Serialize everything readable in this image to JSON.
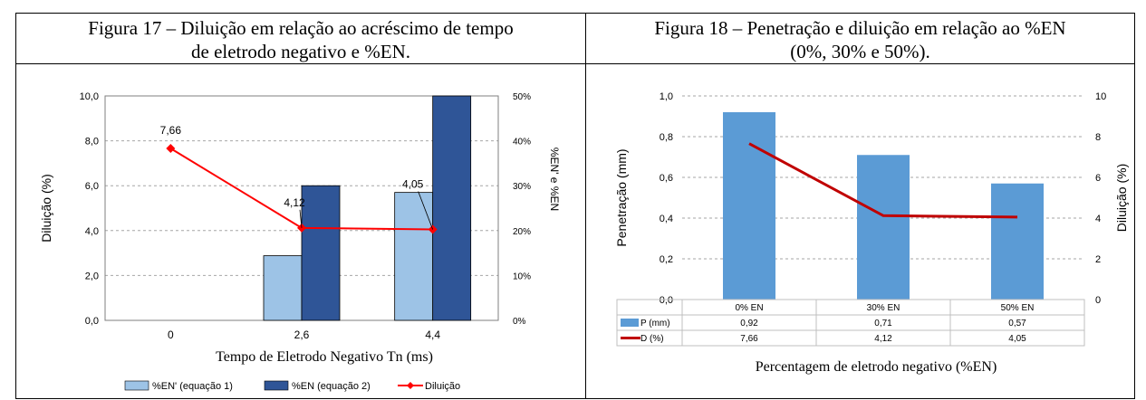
{
  "figure17": {
    "caption_line1": "Figura 17 – Diluição em relação ao acréscimo de tempo",
    "caption_line2": "de eletrodo negativo e %EN.",
    "colors": {
      "light_bar": "#9dc3e6",
      "dark_bar": "#2f5597",
      "line": "#ff0000",
      "grid": "#a6a6a6"
    }
  },
  "figure18": {
    "caption_line1": "Figura 18 – Penetração e diluição em relação ao %EN",
    "caption_line2": "(0%, 30% e 50%).",
    "colors": {
      "bar": "#5b9bd5",
      "line": "#c00000",
      "grid": "#a6a6a6"
    }
  },
  "chart_data": [
    {
      "type": "bar",
      "categories": [
        "0",
        "2,6",
        "4,4"
      ],
      "xlabel": "Tempo de Eletrodo Negativo Tn (ms)",
      "ylabel": "Diluição (%)",
      "ylabel_right": "%EN' e %EN",
      "ylim": [
        0,
        10
      ],
      "ylim_right": [
        0,
        50
      ],
      "yticks": [
        "0,0",
        "2,0",
        "4,0",
        "6,0",
        "8,0",
        "10,0"
      ],
      "yticks_right": [
        "0%",
        "10%",
        "20%",
        "30%",
        "40%",
        "50%"
      ],
      "grid": true,
      "legend_position": "bottom",
      "series": [
        {
          "name": "%EN' (equação 1)",
          "axis": "right",
          "kind": "bar",
          "values": [
            null,
            14.4,
            28.5
          ]
        },
        {
          "name": "%EN (equação 2)",
          "axis": "right",
          "kind": "bar",
          "values": [
            null,
            30,
            50
          ]
        },
        {
          "name": "Diluição",
          "axis": "left",
          "kind": "line",
          "values": [
            7.66,
            4.12,
            4.05
          ]
        }
      ],
      "data_labels": [
        "7,66",
        "4,12",
        "4,05"
      ]
    },
    {
      "type": "bar",
      "categories": [
        "0% EN",
        "30% EN",
        "50% EN"
      ],
      "xlabel": "Percentagem de eletrodo negativo (%EN)",
      "ylabel": "Penetração (mm)",
      "ylabel_right": "Diluição (%)",
      "ylim": [
        0,
        1
      ],
      "ylim_right": [
        0,
        10
      ],
      "yticks": [
        "0,0",
        "0,2",
        "0,4",
        "0,6",
        "0,8",
        "1,0"
      ],
      "yticks_right": [
        "0",
        "2",
        "4",
        "6",
        "8",
        "10"
      ],
      "grid": true,
      "legend_position": "data-table",
      "series": [
        {
          "name": "P (mm)",
          "axis": "left",
          "kind": "bar",
          "values": [
            0.92,
            0.71,
            0.57
          ]
        },
        {
          "name": "D (%)",
          "axis": "right",
          "kind": "line",
          "values": [
            7.66,
            4.12,
            4.05
          ]
        }
      ],
      "table_rows": [
        {
          "label": "P (mm)",
          "cells": [
            "0,92",
            "0,71",
            "0,57"
          ]
        },
        {
          "label": "D (%)",
          "cells": [
            "7,66",
            "4,12",
            "4,05"
          ]
        }
      ]
    }
  ]
}
